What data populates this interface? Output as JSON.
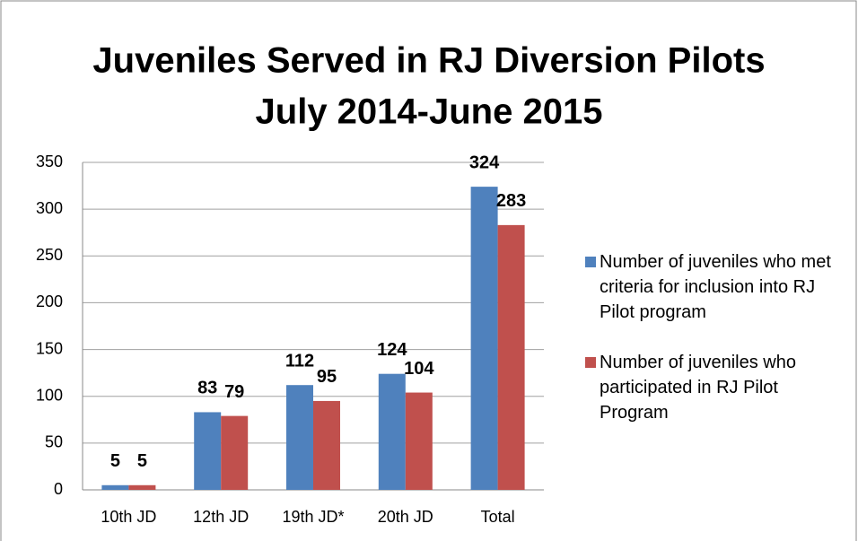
{
  "chart_data": {
    "type": "bar",
    "title": [
      "Juveniles Served in RJ Diversion Pilots",
      "July 2014-June 2015"
    ],
    "categories": [
      "10th JD",
      "12th JD",
      "19th JD*",
      "20th JD",
      "Total"
    ],
    "series": [
      {
        "name": "Number of juveniles who met criteria for inclusion into RJ Pilot program",
        "color": "#4f81bd",
        "values": [
          5,
          83,
          112,
          124,
          324
        ]
      },
      {
        "name": "Number of juveniles who participated in RJ Pilot Program",
        "color": "#c0504d",
        "values": [
          5,
          79,
          95,
          104,
          283
        ]
      }
    ],
    "ylim": [
      0,
      350
    ],
    "yticks": [
      0,
      50,
      100,
      150,
      200,
      250,
      300,
      350
    ],
    "grid": true,
    "legend": "right"
  }
}
